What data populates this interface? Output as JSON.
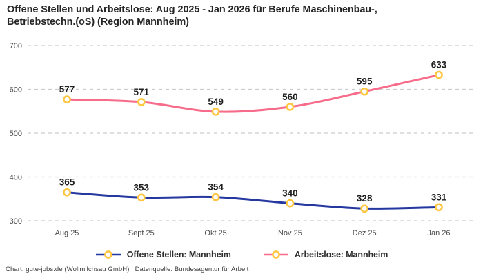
{
  "title": {
    "lines": [
      "Offene Stellen und Arbeitslose: Aug 2025 - Jan 2026 für Berufe Maschinenbau-,",
      "Betriebstechn.(oS) (Region Mannheim)"
    ]
  },
  "footer": {
    "text": "Chart: gute-jobs.de (Wollmilchsau GmbH) | Datenquelle: Bundesagentur für Arbeit"
  },
  "colors": {
    "open_positions_line": "#2438a0",
    "unemployed_line": "#f76c8a",
    "marker_stroke": "#fec63f",
    "marker_fill": "#ffffff",
    "gridline": "#cccccc",
    "tick_label": "#4a4a4a",
    "data_label": "#1e1e1e"
  },
  "chart_data": {
    "type": "line",
    "title": "Offene Stellen und Arbeitslose: Aug 2025 - Jan 2026 für Berufe Maschinenbau-, Betriebstechn.(oS) (Region Mannheim)",
    "categories": [
      "Aug 25",
      "Sept 25",
      "Okt 25",
      "Nov 25",
      "Dez 25",
      "Jan 26"
    ],
    "series": [
      {
        "name": "Offene Stellen: Mannheim",
        "values": [
          365,
          353,
          354,
          340,
          328,
          331
        ],
        "color": "#2438a0"
      },
      {
        "name": "Arbeitslose: Mannheim",
        "values": [
          577,
          571,
          549,
          560,
          595,
          633
        ],
        "color": "#f76c8a"
      }
    ],
    "xlabel": "",
    "ylabel": "",
    "ylim": [
      300,
      700
    ],
    "yticks": [
      300,
      400,
      500,
      600,
      700
    ],
    "grid": "horizontal-dashed",
    "legend_position": "bottom",
    "marker": {
      "shape": "circle",
      "fill": "#ffffff",
      "stroke": "#fec63f"
    }
  }
}
